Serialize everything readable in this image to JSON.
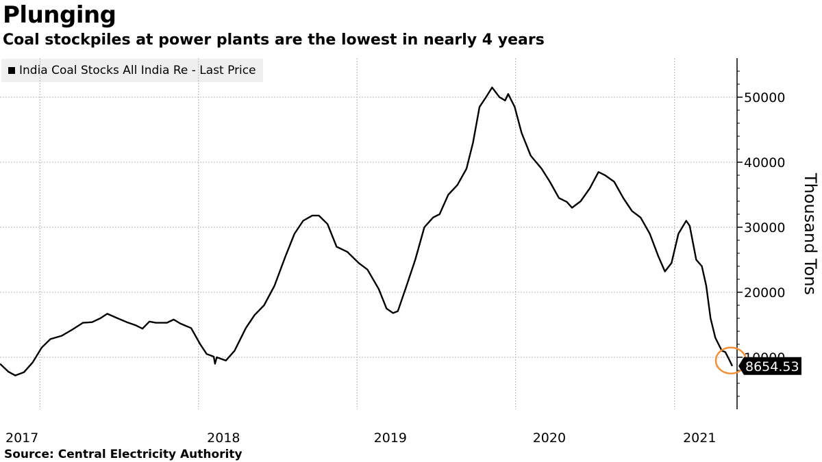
{
  "title": "Plunging",
  "subtitle": "Coal stockpiles at power plants are the lowest in nearly 4 years",
  "source": "Source:  Central Electricity Authority",
  "legend": {
    "label": "India Coal Stocks All India Re - Last Price",
    "color": "#000000"
  },
  "colors": {
    "line": "#000000",
    "grid": "#b4b4b4",
    "highlight": "#f0913a",
    "background": "#ffffff"
  },
  "chart_data": {
    "type": "line",
    "title": "Plunging",
    "subtitle": "Coal stockpiles at power plants are the lowest in nearly 4 years",
    "ylabel": "Thousand Tons",
    "xlabel": "",
    "x_ticks": [
      "2017",
      "2018",
      "2019",
      "2020",
      "2021"
    ],
    "y_ticks": [
      10000,
      20000,
      30000,
      40000,
      50000
    ],
    "ylim": [
      2000,
      56000
    ],
    "xlim": [
      "2016-10-01",
      "2021-05-25"
    ],
    "grid": true,
    "legend_position": "top-left",
    "last_value_label": "8654.53",
    "series": [
      {
        "name": "India Coal Stocks All India Re - Last Price",
        "points": [
          [
            "2016-10-01",
            9000
          ],
          [
            "2016-10-20",
            7800
          ],
          [
            "2016-11-05",
            7200
          ],
          [
            "2016-11-25",
            7700
          ],
          [
            "2016-12-15",
            9200
          ],
          [
            "2017-01-05",
            11500
          ],
          [
            "2017-01-25",
            12800
          ],
          [
            "2017-02-20",
            13300
          ],
          [
            "2017-03-15",
            14200
          ],
          [
            "2017-04-10",
            15300
          ],
          [
            "2017-05-01",
            15400
          ],
          [
            "2017-05-20",
            16000
          ],
          [
            "2017-06-05",
            16700
          ],
          [
            "2017-06-25",
            16100
          ],
          [
            "2017-07-20",
            15400
          ],
          [
            "2017-08-10",
            14900
          ],
          [
            "2017-08-25",
            14400
          ],
          [
            "2017-09-10",
            15500
          ],
          [
            "2017-09-25",
            15300
          ],
          [
            "2017-10-20",
            15300
          ],
          [
            "2017-11-05",
            15800
          ],
          [
            "2017-11-20",
            15200
          ],
          [
            "2017-12-15",
            14500
          ],
          [
            "2018-01-05",
            12000
          ],
          [
            "2018-01-20",
            10500
          ],
          [
            "2018-02-05",
            10100
          ],
          [
            "2018-02-08",
            9000
          ],
          [
            "2018-02-12",
            10000
          ],
          [
            "2018-03-05",
            9500
          ],
          [
            "2018-03-25",
            11000
          ],
          [
            "2018-04-20",
            14500
          ],
          [
            "2018-05-10",
            16500
          ],
          [
            "2018-06-01",
            18000
          ],
          [
            "2018-06-25",
            21000
          ],
          [
            "2018-07-20",
            25500
          ],
          [
            "2018-08-10",
            29000
          ],
          [
            "2018-08-30",
            31000
          ],
          [
            "2018-09-20",
            31800
          ],
          [
            "2018-10-05",
            31800
          ],
          [
            "2018-10-25",
            30500
          ],
          [
            "2018-11-15",
            27000
          ],
          [
            "2018-12-10",
            26200
          ],
          [
            "2019-01-05",
            24500
          ],
          [
            "2019-01-25",
            23500
          ],
          [
            "2019-02-20",
            20500
          ],
          [
            "2019-03-10",
            17500
          ],
          [
            "2019-03-25",
            16800
          ],
          [
            "2019-04-05",
            17100
          ],
          [
            "2019-04-25",
            21000
          ],
          [
            "2019-05-15",
            25000
          ],
          [
            "2019-06-05",
            30000
          ],
          [
            "2019-06-25",
            31500
          ],
          [
            "2019-07-10",
            32000
          ],
          [
            "2019-07-30",
            35000
          ],
          [
            "2019-08-20",
            36500
          ],
          [
            "2019-09-10",
            39000
          ],
          [
            "2019-09-25",
            43000
          ],
          [
            "2019-10-10",
            48500
          ],
          [
            "2019-10-25",
            50000
          ],
          [
            "2019-11-08",
            51500
          ],
          [
            "2019-11-25",
            50000
          ],
          [
            "2019-12-08",
            49500
          ],
          [
            "2019-12-15",
            50500
          ],
          [
            "2019-12-30",
            48500
          ],
          [
            "2020-01-15",
            44500
          ],
          [
            "2020-02-05",
            41000
          ],
          [
            "2020-03-01",
            39000
          ],
          [
            "2020-03-20",
            37000
          ],
          [
            "2020-04-10",
            34500
          ],
          [
            "2020-04-28",
            33900
          ],
          [
            "2020-05-10",
            33000
          ],
          [
            "2020-05-30",
            34000
          ],
          [
            "2020-06-20",
            36000
          ],
          [
            "2020-07-10",
            38500
          ],
          [
            "2020-07-25",
            38000
          ],
          [
            "2020-08-15",
            37000
          ],
          [
            "2020-09-05",
            34500
          ],
          [
            "2020-09-25",
            32500
          ],
          [
            "2020-10-15",
            31500
          ],
          [
            "2020-11-05",
            29000
          ],
          [
            "2020-11-25",
            25500
          ],
          [
            "2020-12-10",
            23200
          ],
          [
            "2020-12-25",
            24500
          ],
          [
            "2021-01-10",
            29000
          ],
          [
            "2021-01-28",
            31000
          ],
          [
            "2021-02-05",
            30200
          ],
          [
            "2021-02-20",
            25000
          ],
          [
            "2021-03-05",
            24000
          ],
          [
            "2021-03-15",
            21000
          ],
          [
            "2021-03-25",
            16000
          ],
          [
            "2021-04-05",
            13000
          ],
          [
            "2021-04-20",
            11000
          ],
          [
            "2021-04-28",
            10800
          ],
          [
            "2021-05-08",
            9500
          ],
          [
            "2021-05-14",
            8654.53
          ]
        ]
      }
    ]
  }
}
